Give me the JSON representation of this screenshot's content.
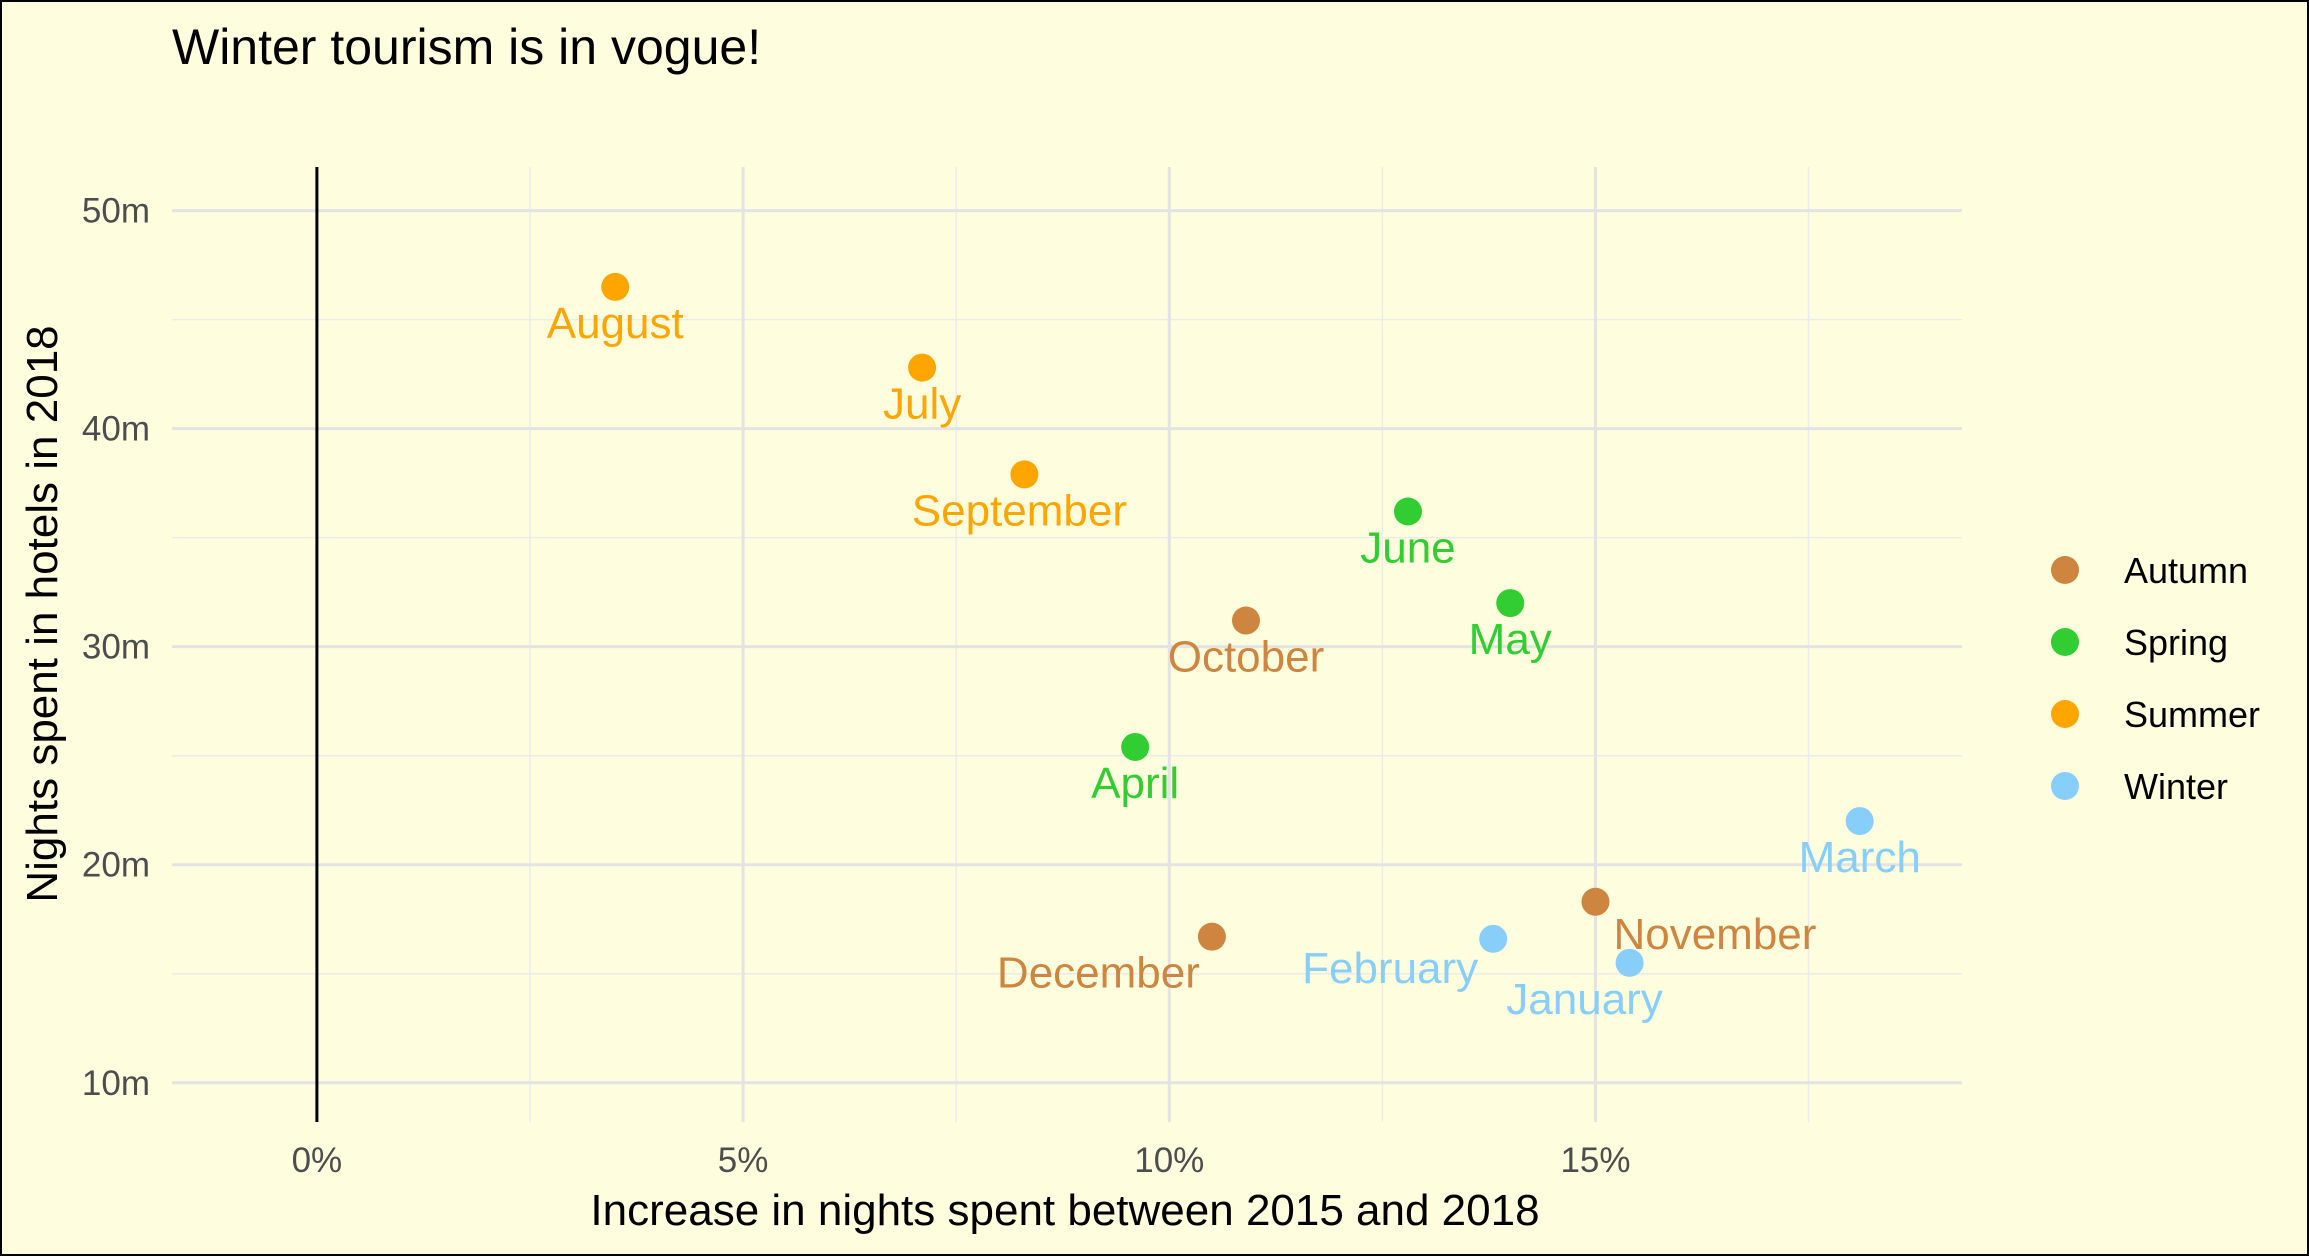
{
  "chart_data": {
    "type": "scatter",
    "title": "Winter tourism is in vogue!",
    "xlabel": "Increase in nights spent between 2015 and 2018",
    "ylabel": "Nights spent in hotels in 2018",
    "xlim": [
      -1.7,
      19.3
    ],
    "ylim": [
      8.2,
      52.0
    ],
    "x_ticks": [
      0,
      5,
      10,
      15
    ],
    "x_tick_labels": [
      "0%",
      "5%",
      "10%",
      "15%"
    ],
    "y_ticks": [
      10,
      20,
      30,
      40,
      50
    ],
    "y_tick_labels": [
      "10m",
      "20m",
      "30m",
      "40m",
      "50m"
    ],
    "grid": true,
    "vline_x": 0,
    "legend_position": "right",
    "seasons": [
      {
        "name": "Autumn",
        "color": "#cd853f"
      },
      {
        "name": "Spring",
        "color": "#32cd32"
      },
      {
        "name": "Summer",
        "color": "#ffa500"
      },
      {
        "name": "Winter",
        "color": "#87cefa"
      }
    ],
    "points": [
      {
        "month": "August",
        "season": "Summer",
        "x": 3.5,
        "y": 46.5
      },
      {
        "month": "July",
        "season": "Summer",
        "x": 7.1,
        "y": 42.8
      },
      {
        "month": "September",
        "season": "Summer",
        "x": 8.3,
        "y": 37.9
      },
      {
        "month": "June",
        "season": "Spring",
        "x": 12.8,
        "y": 36.2
      },
      {
        "month": "May",
        "season": "Spring",
        "x": 14.0,
        "y": 32.0
      },
      {
        "month": "October",
        "season": "Autumn",
        "x": 10.9,
        "y": 31.2
      },
      {
        "month": "April",
        "season": "Spring",
        "x": 9.6,
        "y": 25.4
      },
      {
        "month": "March",
        "season": "Winter",
        "x": 18.1,
        "y": 22.0
      },
      {
        "month": "November",
        "season": "Autumn",
        "x": 15.0,
        "y": 18.3
      },
      {
        "month": "December",
        "season": "Autumn",
        "x": 10.5,
        "y": 16.7
      },
      {
        "month": "February",
        "season": "Winter",
        "x": 13.8,
        "y": 16.6
      },
      {
        "month": "January",
        "season": "Winter",
        "x": 15.4,
        "y": 15.5
      }
    ]
  }
}
